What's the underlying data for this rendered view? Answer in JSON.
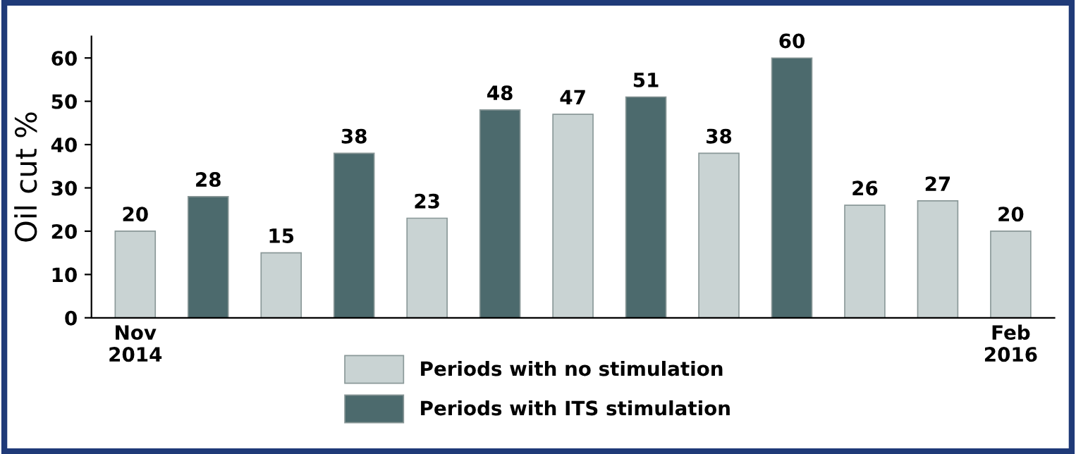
{
  "chart_data": {
    "type": "bar",
    "ylabel": "Oil cut %",
    "categories": [
      "Nov\n2014",
      null,
      null,
      null,
      null,
      null,
      null,
      null,
      null,
      null,
      null,
      null,
      "Feb\n2016"
    ],
    "series": [
      {
        "name": "Periods with no stimulation",
        "color": "#c9d3d3",
        "values": [
          20,
          null,
          15,
          null,
          23,
          null,
          47,
          null,
          38,
          null,
          26,
          27,
          20
        ]
      },
      {
        "name": "Periods with ITS stimulation",
        "color": "#4c6a6d",
        "values": [
          null,
          28,
          null,
          38,
          null,
          48,
          null,
          51,
          null,
          60,
          null,
          null,
          null
        ]
      }
    ],
    "ylim": [
      0,
      65
    ],
    "yticks": [
      0,
      10,
      20,
      30,
      40,
      50,
      60
    ],
    "data_labels": true,
    "grid": false,
    "legend": "bottom"
  }
}
